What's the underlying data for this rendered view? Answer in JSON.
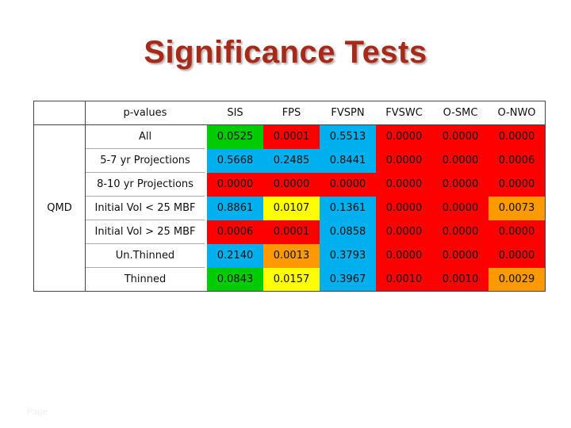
{
  "title": "Significance Tests",
  "table": {
    "corner": "p-values",
    "group_label": "QMD",
    "columns": [
      "SIS",
      "FPS",
      "FVSPN",
      "FVSWC",
      "O-SMC",
      "O-NWO"
    ],
    "rows": [
      {
        "label": "All",
        "values": [
          "0.0525",
          "0.0001",
          "0.5513",
          "0.0000",
          "0.0000",
          "0.0000"
        ],
        "colors": [
          "#00cc00",
          "#ff0000",
          "#00b0ee",
          "#ff0000",
          "#ff0000",
          "#ff0000"
        ]
      },
      {
        "label": "5-7 yr Projections",
        "values": [
          "0.5668",
          "0.2485",
          "0.8441",
          "0.0000",
          "0.0000",
          "0.0006"
        ],
        "colors": [
          "#00b0ee",
          "#00b0ee",
          "#00b0ee",
          "#ff0000",
          "#ff0000",
          "#ff0000"
        ]
      },
      {
        "label": "8-10 yr Projections",
        "values": [
          "0.0000",
          "0.0000",
          "0.0000",
          "0.0000",
          "0.0000",
          "0.0000"
        ],
        "colors": [
          "#ff0000",
          "#ff0000",
          "#ff0000",
          "#ff0000",
          "#ff0000",
          "#ff0000"
        ]
      },
      {
        "label": "Initial Vol < 25 MBF",
        "values": [
          "0.8861",
          "0.0107",
          "0.1361",
          "0.0000",
          "0.0000",
          "0.0073"
        ],
        "colors": [
          "#00b0ee",
          "#ffff00",
          "#00b0ee",
          "#ff0000",
          "#ff0000",
          "#ff9900"
        ]
      },
      {
        "label": "Initial Vol > 25 MBF",
        "values": [
          "0.0006",
          "0.0001",
          "0.0858",
          "0.0000",
          "0.0000",
          "0.0000"
        ],
        "colors": [
          "#ff0000",
          "#ff0000",
          "#00b0ee",
          "#ff0000",
          "#ff0000",
          "#ff0000"
        ]
      },
      {
        "label": "Un.Thinned",
        "values": [
          "0.2140",
          "0.0013",
          "0.3793",
          "0.0000",
          "0.0000",
          "0.0000"
        ],
        "colors": [
          "#00b0ee",
          "#ff9900",
          "#00b0ee",
          "#ff0000",
          "#ff0000",
          "#ff0000"
        ]
      },
      {
        "label": "Thinned",
        "values": [
          "0.0843",
          "0.0157",
          "0.3967",
          "0.0010",
          "0.0010",
          "0.0029"
        ],
        "colors": [
          "#00cc00",
          "#ffff00",
          "#00b0ee",
          "#ff0000",
          "#ff0000",
          "#ff9900"
        ]
      }
    ]
  },
  "legend_colors": {
    "green": "#00cc00",
    "blue": "#00b0ee",
    "yellow": "#ffff00",
    "orange": "#ff9900",
    "red": "#ff0000"
  },
  "title_color": "#a52a1a"
}
